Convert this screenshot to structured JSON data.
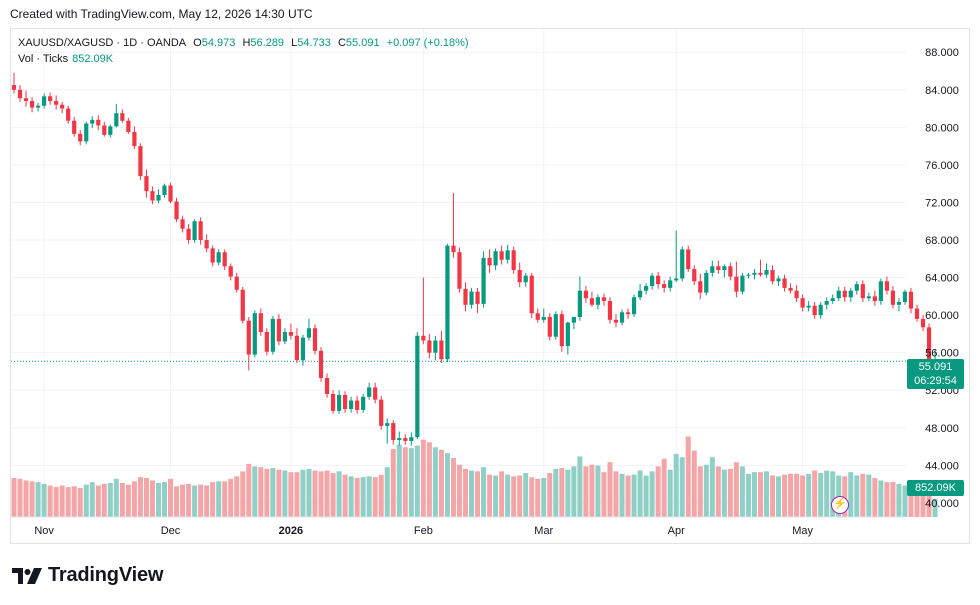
{
  "credit": "Created with TradingView.com, May 12, 2026 14:30 UTC",
  "brand": "TradingView",
  "legend": {
    "symbol": "XAUUSD/XAGUSD",
    "interval": "1D",
    "exchange": "OANDA",
    "open_label": "O",
    "open": "54.973",
    "high_label": "H",
    "high": "56.289",
    "low_label": "L",
    "low": "54.733",
    "close_label": "C",
    "close": "55.091",
    "change": "+0.097 (+0.18%)",
    "vol_label": "Vol · Ticks",
    "vol_value": "852.09K"
  },
  "price_tag": {
    "price": "55.091",
    "countdown": "06:29:54"
  },
  "vol_tag": "852.09K",
  "colors": {
    "up": "#089981",
    "down": "#f23645",
    "vol_up": "#8fcfc6",
    "vol_down": "#f4a5a8",
    "grid": "#f0f3fa",
    "text": "#131722"
  },
  "icons": {
    "logo": "tradingview-logo-icon",
    "flash": "lightning-icon"
  },
  "chart_data": {
    "type": "candlestick",
    "ylim": [
      38.5,
      90.5
    ],
    "y_ticks": [
      "40.000",
      "44.000",
      "48.000",
      "52.000",
      "56.000",
      "60.000",
      "64.000",
      "68.000",
      "72.000",
      "76.000",
      "80.000",
      "84.000",
      "88.000"
    ],
    "x_ticks": [
      {
        "label": "Nov",
        "index": 5
      },
      {
        "label": "Dec",
        "index": 26
      },
      {
        "label": "2026",
        "index": 46
      },
      {
        "label": "Feb",
        "index": 68
      },
      {
        "label": "Mar",
        "index": 88
      },
      {
        "label": "Apr",
        "index": 110
      },
      {
        "label": "May",
        "index": 131
      }
    ],
    "current_price": 55.091,
    "candles": [
      [
        84.5,
        85.8,
        83.6,
        84.0,
        4.7
      ],
      [
        84.0,
        84.5,
        82.7,
        83.1,
        4.6
      ],
      [
        83.1,
        83.9,
        82.2,
        82.8,
        4.4
      ],
      [
        82.8,
        83.2,
        81.6,
        82.1,
        4.3
      ],
      [
        82.1,
        82.6,
        81.7,
        82.3,
        4.2
      ],
      [
        82.3,
        83.6,
        82.0,
        83.3,
        4.0
      ],
      [
        83.3,
        83.7,
        82.4,
        82.8,
        3.8
      ],
      [
        82.8,
        83.4,
        81.9,
        82.4,
        3.6
      ],
      [
        82.4,
        82.7,
        81.5,
        82.0,
        3.8
      ],
      [
        82.0,
        82.3,
        80.4,
        80.7,
        3.6
      ],
      [
        80.7,
        81.1,
        79.0,
        79.3,
        3.7
      ],
      [
        79.3,
        79.7,
        78.1,
        78.5,
        3.5
      ],
      [
        78.5,
        80.6,
        78.2,
        80.4,
        3.9
      ],
      [
        80.4,
        81.2,
        79.9,
        80.8,
        4.2
      ],
      [
        80.8,
        81.3,
        79.7,
        80.2,
        3.8
      ],
      [
        80.2,
        80.6,
        79.0,
        79.2,
        4.0
      ],
      [
        79.2,
        80.3,
        78.9,
        80.1,
        4.1
      ],
      [
        80.1,
        82.5,
        80.0,
        81.5,
        4.6
      ],
      [
        81.5,
        81.9,
        80.5,
        80.7,
        4.1
      ],
      [
        80.7,
        81.0,
        79.3,
        79.5,
        3.9
      ],
      [
        79.5,
        80.1,
        77.7,
        78.0,
        4.3
      ],
      [
        78.0,
        78.3,
        74.4,
        74.8,
        4.8
      ],
      [
        74.8,
        75.5,
        72.5,
        73.2,
        4.7
      ],
      [
        73.2,
        73.7,
        71.8,
        72.2,
        4.4
      ],
      [
        72.2,
        73.4,
        71.9,
        72.8,
        4.1
      ],
      [
        72.8,
        74.0,
        72.5,
        73.8,
        4.2
      ],
      [
        73.8,
        74.1,
        71.9,
        72.1,
        4.6
      ],
      [
        72.1,
        72.5,
        69.9,
        70.2,
        3.7
      ],
      [
        70.2,
        70.6,
        68.8,
        69.2,
        3.9
      ],
      [
        69.2,
        69.7,
        67.6,
        68.0,
        4.0
      ],
      [
        68.0,
        70.2,
        67.7,
        70.0,
        3.8
      ],
      [
        70.0,
        70.4,
        67.5,
        68.0,
        3.9
      ],
      [
        68.0,
        68.6,
        66.7,
        67.1,
        3.8
      ],
      [
        67.1,
        67.4,
        65.2,
        65.6,
        4.2
      ],
      [
        65.6,
        67.0,
        65.3,
        66.7,
        4.3
      ],
      [
        66.7,
        67.0,
        64.8,
        65.2,
        4.3
      ],
      [
        65.2,
        65.5,
        63.7,
        64.1,
        4.6
      ],
      [
        64.1,
        64.5,
        62.4,
        62.7,
        4.9
      ],
      [
        62.7,
        63.0,
        59.1,
        59.4,
        5.5
      ],
      [
        59.4,
        59.8,
        54.1,
        55.8,
        6.4
      ],
      [
        55.8,
        60.5,
        55.5,
        60.2,
        6.1
      ],
      [
        60.2,
        60.7,
        57.8,
        58.2,
        6.0
      ],
      [
        58.2,
        58.6,
        55.7,
        56.1,
        5.8
      ],
      [
        56.1,
        59.9,
        55.8,
        59.6,
        5.9
      ],
      [
        59.6,
        60.1,
        56.8,
        57.2,
        5.7
      ],
      [
        57.2,
        58.6,
        56.9,
        58.2,
        5.6
      ],
      [
        58.2,
        59.1,
        57.4,
        57.8,
        5.4
      ],
      [
        57.8,
        58.6,
        54.9,
        55.2,
        5.4
      ],
      [
        55.2,
        57.9,
        54.6,
        57.6,
        5.7
      ],
      [
        57.6,
        59.6,
        57.3,
        58.6,
        5.8
      ],
      [
        58.6,
        59.0,
        55.8,
        56.2,
        5.6
      ],
      [
        56.2,
        56.6,
        52.9,
        53.3,
        5.5
      ],
      [
        53.3,
        53.8,
        51.2,
        51.6,
        5.6
      ],
      [
        51.6,
        52.0,
        49.5,
        49.8,
        5.3
      ],
      [
        49.8,
        52.0,
        49.5,
        51.5,
        5.5
      ],
      [
        51.5,
        51.9,
        49.6,
        50.0,
        5.1
      ],
      [
        50.0,
        51.3,
        49.6,
        50.9,
        4.9
      ],
      [
        50.9,
        51.4,
        49.5,
        49.9,
        4.7
      ],
      [
        49.9,
        51.6,
        49.6,
        51.3,
        4.8
      ],
      [
        51.3,
        52.8,
        51.0,
        52.3,
        4.9
      ],
      [
        52.3,
        52.8,
        50.6,
        51.0,
        4.8
      ],
      [
        51.0,
        51.4,
        47.8,
        48.2,
        5.1
      ],
      [
        48.2,
        49.0,
        46.3,
        48.5,
        6.0
      ],
      [
        48.5,
        48.8,
        46.2,
        46.7,
        8.2
      ],
      [
        46.7,
        47.6,
        46.1,
        46.9,
        8.7
      ],
      [
        46.9,
        47.3,
        46.2,
        46.6,
        8.4
      ],
      [
        46.6,
        47.5,
        46.1,
        47.0,
        8.3
      ],
      [
        47.0,
        58.2,
        46.8,
        57.8,
        8.6
      ],
      [
        57.8,
        64.0,
        56.9,
        57.3,
        9.3
      ],
      [
        57.3,
        58.0,
        55.4,
        56.0,
        9.0
      ],
      [
        56.0,
        57.8,
        55.2,
        57.3,
        8.4
      ],
      [
        57.3,
        58.3,
        54.9,
        55.3,
        8.1
      ],
      [
        55.3,
        67.6,
        55.0,
        67.4,
        7.7
      ],
      [
        67.4,
        73.0,
        66.1,
        66.7,
        7.1
      ],
      [
        66.7,
        67.2,
        62.4,
        62.8,
        6.3
      ],
      [
        62.8,
        63.5,
        60.4,
        61.1,
        5.8
      ],
      [
        61.1,
        62.9,
        60.7,
        62.5,
        5.6
      ],
      [
        62.5,
        62.9,
        60.2,
        61.2,
        5.5
      ],
      [
        61.2,
        66.8,
        60.8,
        66.1,
        6.0
      ],
      [
        66.1,
        67.0,
        64.5,
        65.3,
        5.1
      ],
      [
        65.3,
        67.1,
        64.8,
        66.8,
        5.0
      ],
      [
        66.8,
        67.4,
        65.4,
        65.9,
        5.5
      ],
      [
        65.9,
        67.5,
        65.5,
        66.9,
        5.1
      ],
      [
        66.9,
        67.3,
        64.4,
        64.8,
        4.9
      ],
      [
        64.8,
        65.6,
        63.0,
        63.5,
        5.0
      ],
      [
        63.5,
        64.5,
        63.0,
        64.2,
        5.3
      ],
      [
        64.2,
        64.5,
        59.7,
        60.2,
        4.8
      ],
      [
        60.2,
        60.7,
        59.2,
        59.5,
        4.6
      ],
      [
        59.5,
        60.7,
        59.2,
        59.8,
        4.7
      ],
      [
        59.8,
        60.2,
        57.3,
        57.7,
        5.3
      ],
      [
        57.7,
        60.4,
        57.4,
        60.1,
        5.8
      ],
      [
        60.1,
        60.5,
        56.1,
        56.7,
        5.9
      ],
      [
        56.7,
        59.3,
        55.8,
        59.2,
        5.7
      ],
      [
        59.2,
        59.8,
        58.5,
        59.8,
        6.1
      ],
      [
        59.8,
        64.1,
        59.4,
        62.6,
        7.3
      ],
      [
        62.6,
        63.1,
        61.3,
        61.8,
        6.1
      ],
      [
        61.8,
        62.5,
        60.9,
        61.1,
        6.3
      ],
      [
        61.1,
        62.2,
        60.6,
        61.9,
        6.2
      ],
      [
        61.9,
        62.3,
        61.0,
        61.5,
        5.4
      ],
      [
        61.5,
        61.9,
        59.1,
        59.5,
        6.6
      ],
      [
        59.5,
        60.1,
        58.7,
        59.2,
        5.5
      ],
      [
        59.2,
        60.6,
        58.9,
        60.3,
        5.2
      ],
      [
        60.3,
        60.7,
        59.6,
        60.1,
        5.0
      ],
      [
        60.1,
        62.2,
        59.8,
        61.9,
        5.1
      ],
      [
        61.9,
        63.3,
        61.6,
        62.6,
        5.6
      ],
      [
        62.6,
        63.4,
        62.2,
        63.1,
        5.0
      ],
      [
        63.1,
        64.5,
        62.7,
        64.2,
        5.5
      ],
      [
        64.2,
        64.6,
        62.8,
        63.3,
        6.1
      ],
      [
        63.3,
        63.7,
        62.4,
        62.9,
        7.0
      ],
      [
        62.9,
        64.1,
        62.5,
        63.7,
        5.7
      ],
      [
        63.7,
        69.0,
        63.5,
        63.9,
        7.6
      ],
      [
        63.9,
        67.3,
        63.6,
        67.0,
        7.2
      ],
      [
        67.0,
        67.4,
        64.6,
        64.9,
        9.7
      ],
      [
        64.9,
        65.3,
        63.2,
        63.6,
        8.0
      ],
      [
        63.6,
        64.4,
        61.7,
        62.4,
        6.1
      ],
      [
        62.4,
        64.8,
        62.1,
        64.5,
        6.3
      ],
      [
        64.5,
        65.8,
        64.1,
        65.2,
        7.2
      ],
      [
        65.2,
        65.8,
        64.4,
        64.8,
        6.1
      ],
      [
        64.8,
        65.4,
        64.0,
        65.2,
        5.7
      ],
      [
        65.2,
        65.6,
        63.7,
        64.1,
        5.8
      ],
      [
        64.1,
        65.7,
        61.9,
        62.5,
        6.6
      ],
      [
        62.5,
        64.5,
        62.2,
        64.2,
        6.1
      ],
      [
        64.2,
        64.5,
        63.9,
        64.3,
        5.2
      ],
      [
        64.3,
        64.9,
        63.8,
        64.5,
        5.4
      ],
      [
        64.5,
        65.9,
        64.1,
        64.3,
        5.4
      ],
      [
        64.3,
        65.5,
        64.0,
        64.8,
        5.5
      ],
      [
        64.8,
        65.3,
        63.3,
        63.6,
        5.0
      ],
      [
        63.6,
        64.2,
        63.1,
        63.9,
        4.9
      ],
      [
        63.9,
        64.3,
        62.5,
        62.9,
        5.1
      ],
      [
        62.9,
        63.4,
        62.3,
        62.6,
        5.2
      ],
      [
        62.6,
        63.2,
        61.4,
        61.8,
        5.2
      ],
      [
        61.8,
        62.2,
        60.4,
        60.8,
        5.0
      ],
      [
        60.8,
        61.5,
        60.4,
        61.0,
        5.2
      ],
      [
        61.0,
        61.4,
        59.6,
        60.0,
        5.6
      ],
      [
        60.0,
        61.4,
        59.6,
        61.1,
        5.3
      ],
      [
        61.1,
        61.9,
        60.6,
        61.5,
        5.6
      ],
      [
        61.5,
        62.2,
        61.2,
        61.8,
        5.5
      ],
      [
        61.8,
        63.0,
        61.5,
        62.6,
        5.0
      ],
      [
        62.6,
        63.0,
        61.4,
        61.9,
        4.9
      ],
      [
        61.9,
        62.9,
        61.4,
        62.6,
        5.4
      ],
      [
        62.6,
        63.6,
        62.2,
        63.3,
        5.0
      ],
      [
        63.3,
        63.7,
        61.4,
        61.8,
        5.2
      ],
      [
        61.8,
        62.4,
        61.5,
        62.0,
        5.1
      ],
      [
        62.0,
        62.6,
        61.0,
        61.5,
        4.7
      ],
      [
        61.5,
        63.9,
        61.1,
        63.6,
        4.4
      ],
      [
        63.6,
        64.1,
        62.2,
        62.6,
        4.2
      ],
      [
        62.6,
        63.1,
        60.7,
        61.1,
        4.2
      ],
      [
        61.1,
        61.8,
        60.4,
        61.4,
        4.0
      ],
      [
        61.4,
        62.7,
        61.1,
        62.5,
        3.8
      ],
      [
        62.5,
        62.9,
        60.2,
        60.7,
        3.8
      ],
      [
        60.7,
        61.1,
        59.3,
        59.6,
        3.9
      ],
      [
        59.6,
        60.0,
        58.3,
        58.7,
        3.7
      ],
      [
        58.7,
        59.1,
        54.9,
        55.0,
        3.8
      ],
      [
        54.973,
        56.289,
        54.733,
        55.091,
        2.2
      ]
    ]
  }
}
